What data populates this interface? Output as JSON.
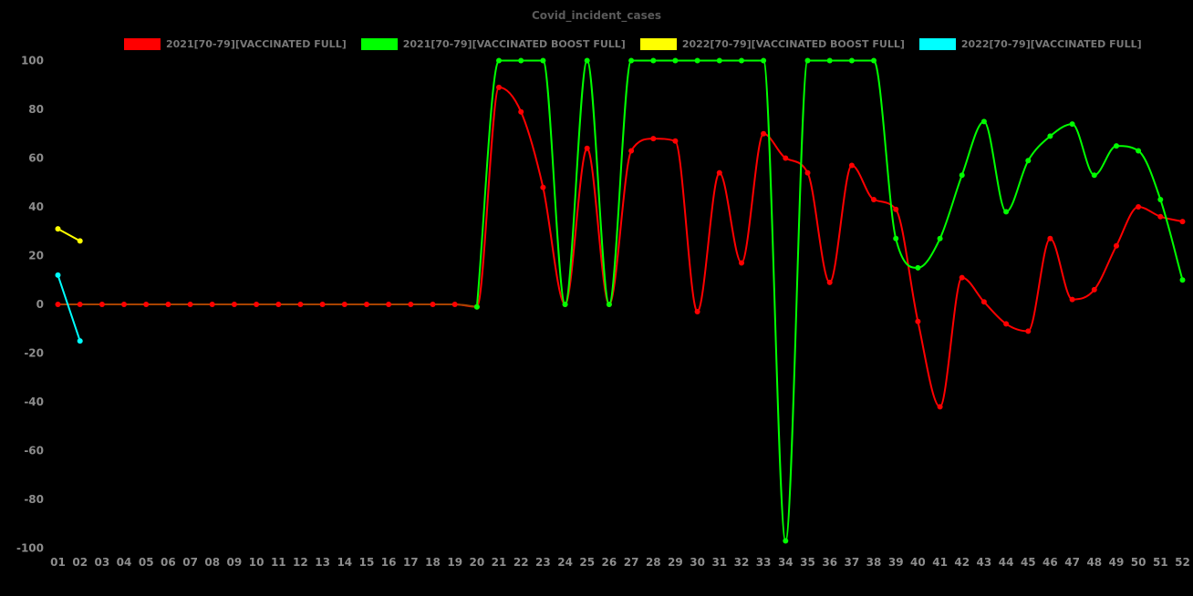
{
  "chart_data": {
    "type": "line",
    "title": "Covid_incident_cases",
    "background_color": "#000000",
    "grid": false,
    "legend_position": "top",
    "ylim": [
      -100,
      100
    ],
    "y_ticks": [
      100,
      80,
      60,
      40,
      20,
      0,
      -20,
      -40,
      -60,
      -80,
      -100
    ],
    "x_categories": [
      "01",
      "02",
      "03",
      "04",
      "05",
      "06",
      "07",
      "08",
      "09",
      "10",
      "11",
      "12",
      "13",
      "14",
      "15",
      "16",
      "17",
      "18",
      "19",
      "20",
      "21",
      "22",
      "23",
      "24",
      "25",
      "26",
      "27",
      "28",
      "29",
      "30",
      "31",
      "32",
      "33",
      "34",
      "35",
      "36",
      "37",
      "38",
      "39",
      "40",
      "41",
      "42",
      "43",
      "44",
      "45",
      "46",
      "47",
      "48",
      "49",
      "50",
      "51",
      "52"
    ],
    "series": [
      {
        "name": "2021[70-79][VACCINATED FULL]",
        "color": "#ff0000",
        "zero_segment_color": "#a84300",
        "zero_segment_end_week": 20,
        "marker": "circle",
        "weeks": [
          1,
          2,
          3,
          4,
          5,
          6,
          7,
          8,
          9,
          10,
          11,
          12,
          13,
          14,
          15,
          16,
          17,
          18,
          19,
          20,
          21,
          22,
          23,
          24,
          25,
          26,
          27,
          28,
          29,
          30,
          31,
          32,
          33,
          34,
          35,
          36,
          37,
          38,
          39,
          40,
          41,
          42,
          43,
          44,
          45,
          46,
          47,
          48,
          49,
          50,
          51,
          52
        ],
        "values": [
          0,
          0,
          0,
          0,
          0,
          0,
          0,
          0,
          0,
          0,
          0,
          0,
          0,
          0,
          0,
          0,
          0,
          0,
          0,
          -1,
          89,
          79,
          48,
          0,
          64,
          0,
          63,
          68,
          67,
          -3,
          54,
          17,
          70,
          60,
          54,
          9,
          57,
          43,
          39,
          -7,
          -42,
          11,
          1,
          -8,
          -11,
          27,
          2,
          6,
          24,
          40,
          36,
          34
        ]
      },
      {
        "name": "2021[70-79][VACCINATED BOOST FULL]",
        "color": "#00ff00",
        "marker": "circle",
        "weeks": [
          20,
          21,
          22,
          23,
          24,
          25,
          26,
          27,
          28,
          29,
          30,
          31,
          32,
          33,
          34,
          35,
          36,
          37,
          38,
          39,
          40,
          41,
          42,
          43,
          44,
          45,
          46,
          47,
          48,
          49,
          50,
          51,
          52
        ],
        "values": [
          -1,
          100,
          100,
          100,
          0,
          100,
          0,
          100,
          100,
          100,
          100,
          100,
          100,
          100,
          -97,
          100,
          100,
          100,
          100,
          27,
          15,
          27,
          53,
          75,
          38,
          59,
          69,
          74,
          53,
          65,
          63,
          43,
          10
        ]
      },
      {
        "name": "2022[70-79][VACCINATED BOOST FULL]",
        "color": "#ffff00",
        "marker": "circle",
        "weeks": [
          1,
          2
        ],
        "values": [
          31,
          26
        ]
      },
      {
        "name": "2022[70-79][VACCINATED FULL]",
        "color": "#00ffff",
        "marker": "circle",
        "weeks": [
          1,
          2
        ],
        "values": [
          12,
          -15
        ]
      }
    ]
  },
  "legend": {
    "items": [
      {
        "label": "2021[70-79][VACCINATED FULL]",
        "color": "#ff0000"
      },
      {
        "label": "2021[70-79][VACCINATED BOOST FULL]",
        "color": "#00ff00"
      },
      {
        "label": "2022[70-79][VACCINATED BOOST FULL]",
        "color": "#ffff00"
      },
      {
        "label": "2022[70-79][VACCINATED FULL]",
        "color": "#00ffff"
      }
    ]
  },
  "text_colors": {
    "title": "#5a5a5a",
    "legend": "#787878",
    "ticks": "#8c8c8c"
  }
}
